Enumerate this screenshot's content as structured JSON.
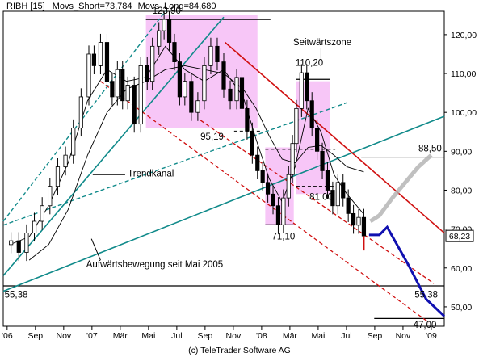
{
  "header": {
    "symbol": "RIBH [15]",
    "ma_short": "Movs_Short=73,784",
    "ma_long": "Movs_Long=84,680"
  },
  "footer": {
    "copyright": "(c) TeleTrader Software AG"
  },
  "chart_data": {
    "type": "line",
    "x_tick_labels": [
      "'06",
      "Sep",
      "Nov",
      "'07",
      "Mär",
      "Mai",
      "Jul",
      "Sep",
      "Nov",
      "'08",
      "Mär",
      "Mai",
      "Jul",
      "Sep",
      "Nov",
      "'09"
    ],
    "y_tick_labels": [
      "50,00",
      "60,00",
      "70,00",
      "80,00",
      "90,00",
      "100,00",
      "110,00",
      "120,00"
    ],
    "ylim": [
      45,
      126
    ],
    "xlim": [
      0,
      34
    ],
    "last_price_label": "68,23",
    "last_price": 68.23,
    "price_series": [
      [
        0,
        66
      ],
      [
        0.6,
        67
      ],
      [
        1.2,
        64
      ],
      [
        1.8,
        69
      ],
      [
        2.4,
        72
      ],
      [
        3,
        76
      ],
      [
        3.6,
        81
      ],
      [
        4.2,
        86
      ],
      [
        4.8,
        89
      ],
      [
        5.4,
        96
      ],
      [
        6,
        104
      ],
      [
        6.6,
        115
      ],
      [
        7,
        112
      ],
      [
        7.5,
        118
      ],
      [
        8,
        108
      ],
      [
        8.4,
        104
      ],
      [
        8.8,
        111
      ],
      [
        9.2,
        103
      ],
      [
        9.6,
        107
      ],
      [
        10.1,
        97
      ],
      [
        10.6,
        112
      ],
      [
        11.1,
        108
      ],
      [
        11.5,
        117
      ],
      [
        12,
        121
      ],
      [
        12.4,
        123.9
      ],
      [
        12.8,
        118
      ],
      [
        13.2,
        113
      ],
      [
        13.6,
        104
      ],
      [
        14,
        108
      ],
      [
        14.5,
        100
      ],
      [
        15,
        103
      ],
      [
        15.5,
        112
      ],
      [
        16,
        117
      ],
      [
        16.5,
        113
      ],
      [
        17,
        106
      ],
      [
        17.5,
        103
      ],
      [
        18,
        109
      ],
      [
        18.4,
        101
      ],
      [
        18.8,
        95.19
      ],
      [
        19.2,
        89
      ],
      [
        19.6,
        85
      ],
      [
        20,
        82
      ],
      [
        20.4,
        79
      ],
      [
        20.8,
        76
      ],
      [
        21.2,
        71.1
      ],
      [
        21.6,
        78
      ],
      [
        22,
        84
      ],
      [
        22.3,
        92
      ],
      [
        22.6,
        101
      ],
      [
        23,
        110.2
      ],
      [
        23.4,
        103
      ],
      [
        23.8,
        96
      ],
      [
        24.2,
        90
      ],
      [
        24.6,
        85
      ],
      [
        25,
        80
      ],
      [
        25.4,
        76
      ],
      [
        25.8,
        82
      ],
      [
        26.2,
        78
      ],
      [
        26.6,
        74
      ],
      [
        27,
        71
      ],
      [
        27.4,
        73
      ],
      [
        27.8,
        68.23
      ]
    ],
    "series": [
      {
        "name": "Movs_Short",
        "values": [
          [
            0.5,
            66
          ],
          [
            2,
            68
          ],
          [
            3.5,
            76
          ],
          [
            5,
            87
          ],
          [
            6.5,
            103
          ],
          [
            8,
            111
          ],
          [
            9.5,
            108
          ],
          [
            11,
            109
          ],
          [
            12.5,
            117
          ],
          [
            14,
            111
          ],
          [
            15.5,
            108
          ],
          [
            17,
            111
          ],
          [
            18.5,
            104
          ],
          [
            19.5,
            93
          ],
          [
            20.5,
            83
          ],
          [
            21.5,
            77
          ],
          [
            22.5,
            86
          ],
          [
            23.5,
            101
          ],
          [
            24.5,
            95
          ],
          [
            25.5,
            84
          ],
          [
            26.5,
            79
          ],
          [
            27.8,
            73.8
          ]
        ]
      },
      {
        "name": "Movs_Long",
        "values": [
          [
            2,
            62
          ],
          [
            3.5,
            66
          ],
          [
            5,
            75
          ],
          [
            6.5,
            89
          ],
          [
            8,
            100
          ],
          [
            9.5,
            106
          ],
          [
            11,
            108
          ],
          [
            12.5,
            111
          ],
          [
            14,
            112
          ],
          [
            15.5,
            111
          ],
          [
            17,
            110
          ],
          [
            18.5,
            106
          ],
          [
            19.5,
            101
          ],
          [
            20.5,
            94
          ],
          [
            21.5,
            88
          ],
          [
            22.5,
            87
          ],
          [
            23.5,
            91
          ],
          [
            24.5,
            91.5
          ],
          [
            25.5,
            89
          ],
          [
            26.5,
            86
          ],
          [
            27.8,
            84.7
          ]
        ]
      }
    ],
    "annotations": [
      {
        "text": "123,90"
      },
      {
        "text": "Seitwärtszone"
      },
      {
        "text": "110,20"
      },
      {
        "text": "95,19"
      },
      {
        "text": "88,50"
      },
      {
        "text": "Trendkanal"
      },
      {
        "text": "81,00"
      },
      {
        "text": "71,10"
      },
      {
        "text": "Aufwärtsbewegung seit Mai 2005"
      },
      {
        "text": "55,38"
      },
      {
        "text": "55,38"
      },
      {
        "text": "47,00"
      }
    ],
    "levels": [
      55.38,
      88.5,
      47.0,
      123.9
    ],
    "colors": {
      "trend_channel": "#108a8a",
      "downtrend_upper": "#d01010",
      "downtrend_lower": "#d01010",
      "sideways_zone": "#f7c6f7",
      "projection": "#1010b0",
      "projection_alt": "#b0b0b0",
      "candle_up": "#ffffff",
      "candle_down": "#000000",
      "ma_line": "#000000"
    }
  }
}
